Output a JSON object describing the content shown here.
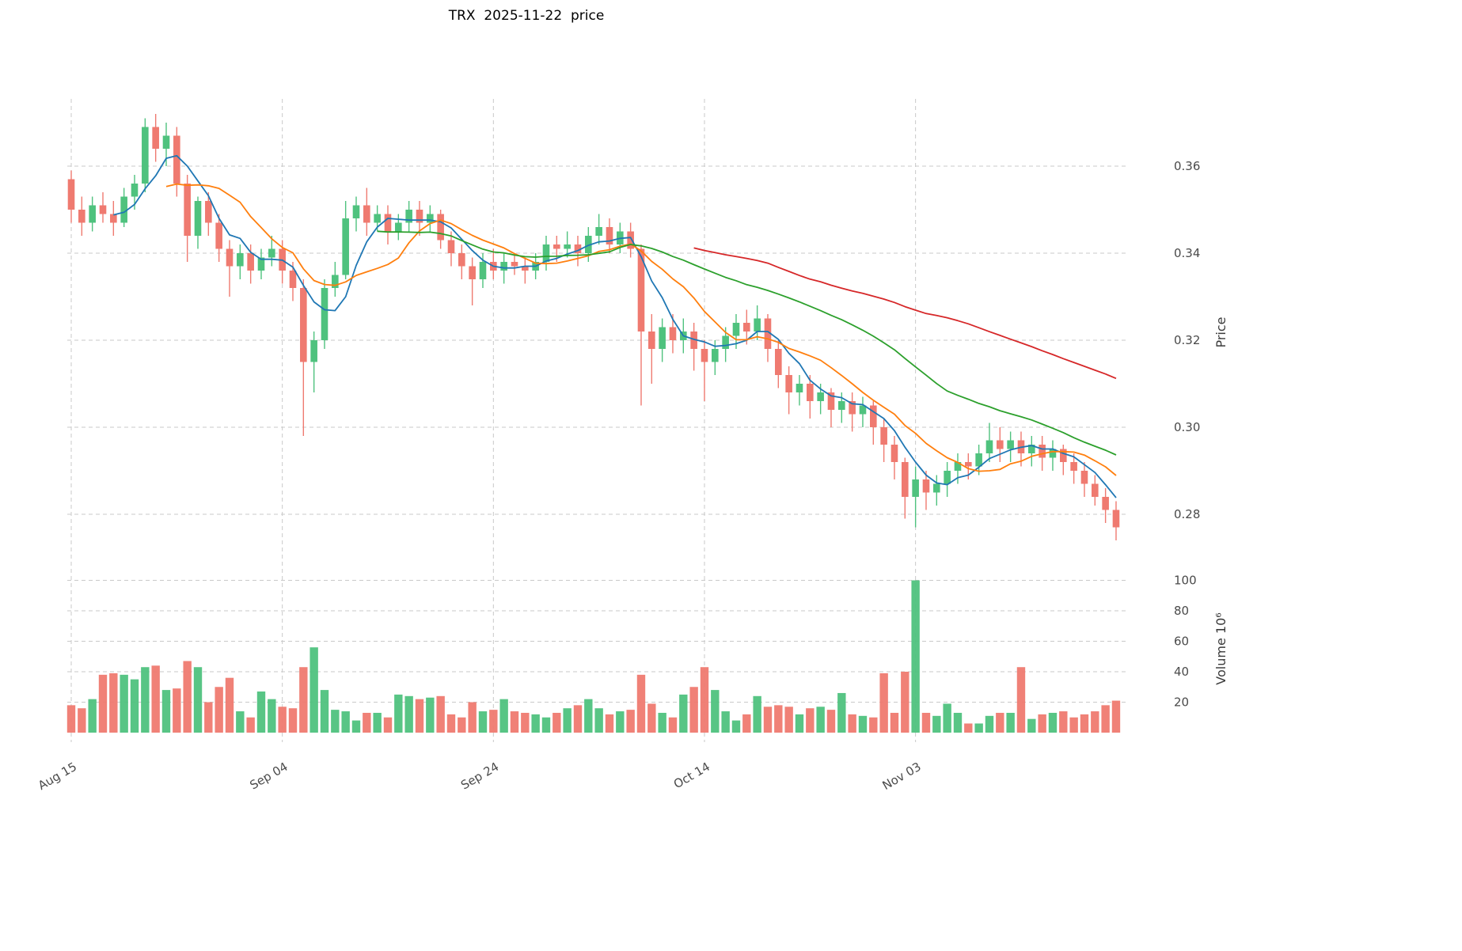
{
  "title": "TRX  2025-11-22  price",
  "chart_data": {
    "type": "candlestick",
    "title": "TRX  2025-11-22  price",
    "ylabel_price": "Price",
    "ylabel_volume": "Volume  10⁶",
    "x_tick_labels": [
      "Aug 15",
      "Sep 04",
      "Sep 24",
      "Oct 14",
      "Nov 03"
    ],
    "x_tick_indices": [
      0,
      20,
      40,
      60,
      80
    ],
    "price_ticks": [
      0.28,
      0.3,
      0.32,
      0.34,
      0.36
    ],
    "volume_ticks": [
      20,
      40,
      60,
      80,
      100
    ],
    "price_range": [
      0.271,
      0.376
    ],
    "volume_range": [
      0,
      102
    ],
    "grid": true,
    "legend": "none",
    "up_color": "#4fc27e",
    "down_color": "#ef7a70",
    "moving_averages": [
      {
        "name": "ma-short",
        "window": 5,
        "color": "#1f77b4"
      },
      {
        "name": "ma-mid",
        "window": 10,
        "color": "#ff7f0e"
      },
      {
        "name": "ma-long",
        "window": 30,
        "color": "#2ca02c"
      },
      {
        "name": "ma-xlong",
        "window": 60,
        "color": "#d62728"
      }
    ],
    "columns": [
      "date",
      "open",
      "high",
      "low",
      "close",
      "volume_millions"
    ],
    "candles": [
      [
        "Aug 15",
        0.357,
        0.359,
        0.347,
        0.35,
        18
      ],
      [
        "Aug 16",
        0.35,
        0.353,
        0.344,
        0.347,
        16
      ],
      [
        "Aug 17",
        0.347,
        0.353,
        0.345,
        0.351,
        22
      ],
      [
        "Aug 18",
        0.351,
        0.354,
        0.347,
        0.349,
        38
      ],
      [
        "Aug 19",
        0.349,
        0.352,
        0.344,
        0.347,
        39
      ],
      [
        "Aug 20",
        0.347,
        0.355,
        0.346,
        0.353,
        38
      ],
      [
        "Aug 21",
        0.353,
        0.358,
        0.35,
        0.356,
        35
      ],
      [
        "Aug 22",
        0.356,
        0.371,
        0.354,
        0.369,
        43
      ],
      [
        "Aug 23",
        0.369,
        0.372,
        0.361,
        0.364,
        44
      ],
      [
        "Aug 24",
        0.364,
        0.37,
        0.36,
        0.367,
        28
      ],
      [
        "Aug 25",
        0.367,
        0.369,
        0.353,
        0.356,
        29
      ],
      [
        "Aug 26",
        0.356,
        0.358,
        0.338,
        0.344,
        47
      ],
      [
        "Aug 27",
        0.344,
        0.353,
        0.341,
        0.352,
        43
      ],
      [
        "Aug 28",
        0.352,
        0.354,
        0.344,
        0.347,
        20
      ],
      [
        "Aug 29",
        0.347,
        0.349,
        0.338,
        0.341,
        30
      ],
      [
        "Aug 30",
        0.341,
        0.343,
        0.33,
        0.337,
        36
      ],
      [
        "Aug 31",
        0.337,
        0.342,
        0.334,
        0.34,
        14
      ],
      [
        "Sep 01",
        0.34,
        0.342,
        0.333,
        0.336,
        10
      ],
      [
        "Sep 02",
        0.336,
        0.341,
        0.334,
        0.339,
        27
      ],
      [
        "Sep 03",
        0.339,
        0.344,
        0.337,
        0.341,
        22
      ],
      [
        "Sep 04",
        0.341,
        0.343,
        0.333,
        0.336,
        17
      ],
      [
        "Sep 05",
        0.336,
        0.338,
        0.329,
        0.332,
        16
      ],
      [
        "Sep 06",
        0.332,
        0.334,
        0.298,
        0.315,
        43
      ],
      [
        "Sep 07",
        0.315,
        0.322,
        0.308,
        0.32,
        56
      ],
      [
        "Sep 08",
        0.32,
        0.334,
        0.318,
        0.332,
        28
      ],
      [
        "Sep 09",
        0.332,
        0.338,
        0.33,
        0.335,
        15
      ],
      [
        "Sep 10",
        0.335,
        0.352,
        0.334,
        0.348,
        14
      ],
      [
        "Sep 11",
        0.348,
        0.353,
        0.345,
        0.351,
        8
      ],
      [
        "Sep 12",
        0.351,
        0.355,
        0.344,
        0.347,
        13
      ],
      [
        "Sep 13",
        0.347,
        0.351,
        0.345,
        0.349,
        13
      ],
      [
        "Sep 14",
        0.349,
        0.351,
        0.342,
        0.345,
        10
      ],
      [
        "Sep 15",
        0.345,
        0.349,
        0.343,
        0.347,
        25
      ],
      [
        "Sep 16",
        0.347,
        0.352,
        0.345,
        0.35,
        24
      ],
      [
        "Sep 17",
        0.35,
        0.352,
        0.344,
        0.347,
        22
      ],
      [
        "Sep 18",
        0.347,
        0.351,
        0.345,
        0.349,
        23
      ],
      [
        "Sep 19",
        0.349,
        0.35,
        0.341,
        0.343,
        24
      ],
      [
        "Sep 20",
        0.343,
        0.345,
        0.337,
        0.34,
        12
      ],
      [
        "Sep 21",
        0.34,
        0.342,
        0.334,
        0.337,
        10
      ],
      [
        "Sep 22",
        0.337,
        0.339,
        0.328,
        0.334,
        20
      ],
      [
        "Sep 23",
        0.334,
        0.34,
        0.332,
        0.338,
        14
      ],
      [
        "Sep 24",
        0.338,
        0.341,
        0.334,
        0.336,
        15
      ],
      [
        "Sep 25",
        0.336,
        0.34,
        0.333,
        0.338,
        22
      ],
      [
        "Sep 26",
        0.338,
        0.34,
        0.335,
        0.337,
        14
      ],
      [
        "Sep 27",
        0.337,
        0.339,
        0.333,
        0.336,
        13
      ],
      [
        "Sep 28",
        0.336,
        0.34,
        0.334,
        0.338,
        12
      ],
      [
        "Sep 29",
        0.338,
        0.344,
        0.336,
        0.342,
        10
      ],
      [
        "Sep 30",
        0.342,
        0.344,
        0.338,
        0.341,
        13
      ],
      [
        "Oct 01",
        0.341,
        0.345,
        0.339,
        0.342,
        16
      ],
      [
        "Oct 02",
        0.342,
        0.344,
        0.337,
        0.34,
        18
      ],
      [
        "Oct 03",
        0.34,
        0.346,
        0.338,
        0.344,
        22
      ],
      [
        "Oct 04",
        0.344,
        0.349,
        0.342,
        0.346,
        16
      ],
      [
        "Oct 05",
        0.346,
        0.348,
        0.34,
        0.342,
        12
      ],
      [
        "Oct 06",
        0.342,
        0.347,
        0.34,
        0.345,
        14
      ],
      [
        "Oct 07",
        0.345,
        0.347,
        0.339,
        0.341,
        15
      ],
      [
        "Oct 08",
        0.341,
        0.342,
        0.305,
        0.322,
        38
      ],
      [
        "Oct 09",
        0.322,
        0.326,
        0.31,
        0.318,
        19
      ],
      [
        "Oct 10",
        0.318,
        0.325,
        0.315,
        0.323,
        13
      ],
      [
        "Oct 11",
        0.323,
        0.326,
        0.317,
        0.32,
        10
      ],
      [
        "Oct 12",
        0.32,
        0.325,
        0.317,
        0.322,
        25
      ],
      [
        "Oct 13",
        0.322,
        0.324,
        0.313,
        0.318,
        30
      ],
      [
        "Oct 14",
        0.318,
        0.32,
        0.306,
        0.315,
        43
      ],
      [
        "Oct 15",
        0.315,
        0.32,
        0.312,
        0.318,
        28
      ],
      [
        "Oct 16",
        0.318,
        0.323,
        0.315,
        0.321,
        14
      ],
      [
        "Oct 17",
        0.321,
        0.326,
        0.318,
        0.324,
        8
      ],
      [
        "Oct 18",
        0.324,
        0.327,
        0.319,
        0.322,
        12
      ],
      [
        "Oct 19",
        0.322,
        0.328,
        0.32,
        0.325,
        24
      ],
      [
        "Oct 20",
        0.325,
        0.326,
        0.315,
        0.318,
        17
      ],
      [
        "Oct 21",
        0.318,
        0.32,
        0.309,
        0.312,
        18
      ],
      [
        "Oct 22",
        0.312,
        0.314,
        0.303,
        0.308,
        17
      ],
      [
        "Oct 23",
        0.308,
        0.312,
        0.305,
        0.31,
        12
      ],
      [
        "Oct 24",
        0.31,
        0.312,
        0.302,
        0.306,
        16
      ],
      [
        "Oct 25",
        0.306,
        0.31,
        0.303,
        0.308,
        17
      ],
      [
        "Oct 26",
        0.308,
        0.309,
        0.3,
        0.304,
        15
      ],
      [
        "Oct 27",
        0.304,
        0.308,
        0.301,
        0.306,
        26
      ],
      [
        "Oct 28",
        0.306,
        0.308,
        0.299,
        0.303,
        12
      ],
      [
        "Oct 29",
        0.303,
        0.307,
        0.3,
        0.305,
        11
      ],
      [
        "Oct 30",
        0.305,
        0.306,
        0.296,
        0.3,
        10
      ],
      [
        "Oct 31",
        0.3,
        0.302,
        0.292,
        0.296,
        39
      ],
      [
        "Nov 01",
        0.296,
        0.298,
        0.288,
        0.292,
        13
      ],
      [
        "Nov 02",
        0.292,
        0.293,
        0.279,
        0.284,
        40
      ],
      [
        "Nov 03",
        0.284,
        0.291,
        0.277,
        0.288,
        100
      ],
      [
        "Nov 04",
        0.288,
        0.29,
        0.281,
        0.285,
        13
      ],
      [
        "Nov 05",
        0.285,
        0.289,
        0.282,
        0.287,
        11
      ],
      [
        "Nov 06",
        0.287,
        0.292,
        0.284,
        0.29,
        19
      ],
      [
        "Nov 07",
        0.29,
        0.294,
        0.287,
        0.292,
        13
      ],
      [
        "Nov 08",
        0.292,
        0.294,
        0.288,
        0.291,
        6
      ],
      [
        "Nov 09",
        0.291,
        0.296,
        0.289,
        0.294,
        6
      ],
      [
        "Nov 10",
        0.294,
        0.301,
        0.292,
        0.297,
        11
      ],
      [
        "Nov 11",
        0.297,
        0.3,
        0.292,
        0.295,
        13
      ],
      [
        "Nov 12",
        0.295,
        0.299,
        0.292,
        0.297,
        13
      ],
      [
        "Nov 13",
        0.297,
        0.299,
        0.291,
        0.294,
        43
      ],
      [
        "Nov 14",
        0.294,
        0.298,
        0.291,
        0.296,
        9
      ],
      [
        "Nov 15",
        0.296,
        0.298,
        0.29,
        0.293,
        12
      ],
      [
        "Nov 16",
        0.293,
        0.297,
        0.29,
        0.295,
        13
      ],
      [
        "Nov 17",
        0.295,
        0.296,
        0.289,
        0.292,
        14
      ],
      [
        "Nov 18",
        0.292,
        0.294,
        0.287,
        0.29,
        10
      ],
      [
        "Nov 19",
        0.29,
        0.292,
        0.284,
        0.287,
        12
      ],
      [
        "Nov 20",
        0.287,
        0.289,
        0.282,
        0.284,
        14
      ],
      [
        "Nov 21",
        0.284,
        0.286,
        0.278,
        0.281,
        18
      ],
      [
        "Nov 22",
        0.281,
        0.283,
        0.274,
        0.277,
        21
      ]
    ]
  }
}
